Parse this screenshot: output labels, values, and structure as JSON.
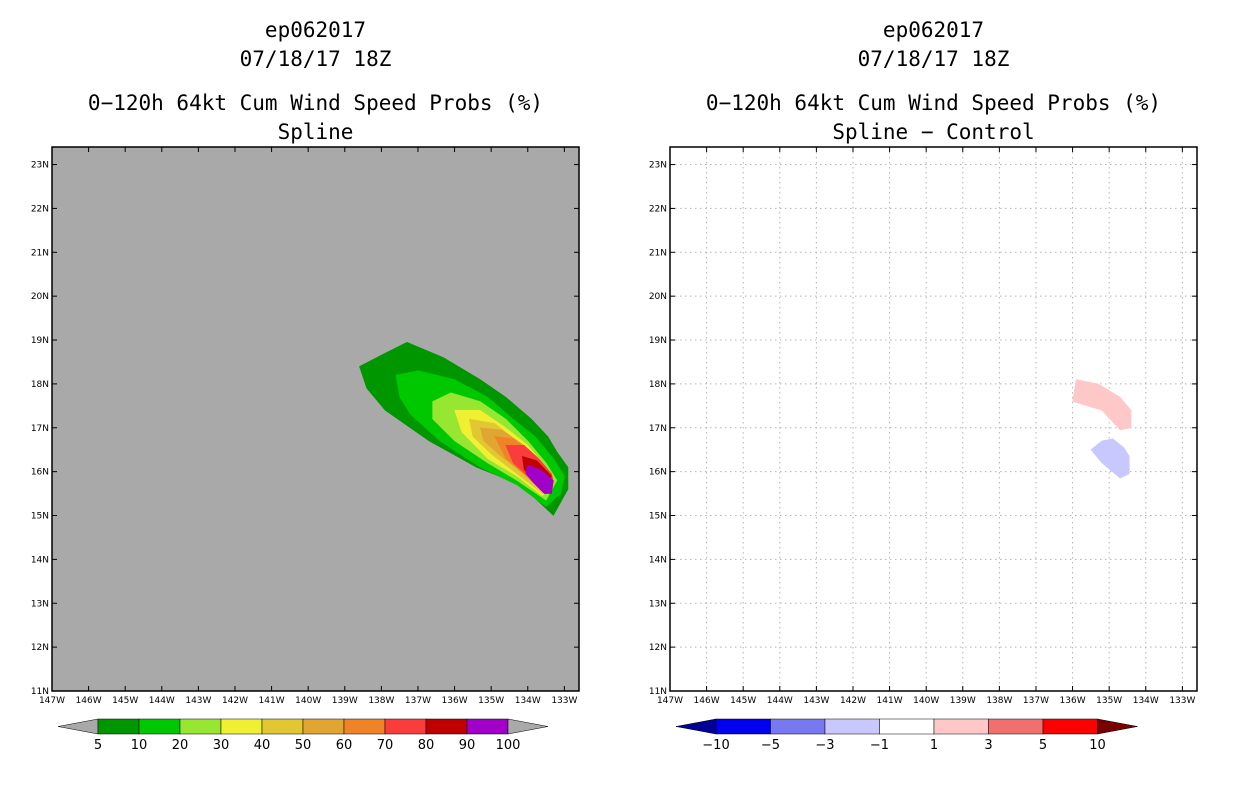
{
  "left_panel": {
    "storm_id": "ep062017",
    "datetime": "07/18/17 18Z",
    "product": "0−120h 64kt Cum Wind Speed Probs (%)",
    "subtitle": "Spline"
  },
  "right_panel": {
    "storm_id": "ep062017",
    "datetime": "07/18/17 18Z",
    "product": "0−120h 64kt Cum Wind Speed Probs (%)",
    "subtitle": "Spline − Control"
  },
  "chart_data": [
    {
      "type": "heatmap",
      "title": "0-120h 64kt Cum Wind Speed Probs (%) Spline",
      "background_color": "#a9a9a9",
      "xlim": [
        -147,
        -132.6
      ],
      "ylim": [
        11,
        23.4
      ],
      "x_ticks": [
        -147,
        -146,
        -145,
        -144,
        -143,
        -142,
        -141,
        -140,
        -139,
        -138,
        -137,
        -136,
        -135,
        -134,
        -133
      ],
      "x_tick_labels": [
        "147W",
        "146W",
        "145W",
        "144W",
        "143W",
        "142W",
        "141W",
        "140W",
        "139W",
        "138W",
        "137W",
        "136W",
        "135W",
        "134W",
        "133W"
      ],
      "y_ticks": [
        11,
        12,
        13,
        14,
        15,
        16,
        17,
        18,
        19,
        20,
        21,
        22,
        23
      ],
      "y_tick_labels": [
        "11N",
        "12N",
        "13N",
        "14N",
        "15N",
        "16N",
        "17N",
        "18N",
        "19N",
        "20N",
        "21N",
        "22N",
        "23N"
      ],
      "grid": false,
      "levels": [
        {
          "min": 5,
          "color": "#009600",
          "polygon": [
            [
              -138.6,
              18.4
            ],
            [
              -137.9,
              18.7
            ],
            [
              -137.3,
              18.95
            ],
            [
              -136.3,
              18.6
            ],
            [
              -135.3,
              18.1
            ],
            [
              -134.6,
              17.7
            ],
            [
              -133.9,
              17.2
            ],
            [
              -133.45,
              16.8
            ],
            [
              -133.2,
              16.45
            ],
            [
              -132.9,
              16.1
            ],
            [
              -132.9,
              15.6
            ],
            [
              -133.3,
              15.0
            ],
            [
              -134.2,
              15.7
            ],
            [
              -135.4,
              16.1
            ],
            [
              -136.7,
              16.7
            ],
            [
              -137.9,
              17.4
            ],
            [
              -138.4,
              17.9
            ]
          ]
        },
        {
          "min": 10,
          "color": "#00c800",
          "polygon": [
            [
              -137.6,
              18.2
            ],
            [
              -137.0,
              18.3
            ],
            [
              -136.0,
              18.1
            ],
            [
              -135.1,
              17.7
            ],
            [
              -134.4,
              17.2
            ],
            [
              -133.8,
              16.8
            ],
            [
              -133.3,
              16.3
            ],
            [
              -133.0,
              15.9
            ],
            [
              -133.1,
              15.5
            ],
            [
              -133.5,
              15.2
            ],
            [
              -134.3,
              15.7
            ],
            [
              -135.3,
              16.1
            ],
            [
              -136.4,
              16.7
            ],
            [
              -137.2,
              17.3
            ],
            [
              -137.5,
              17.7
            ]
          ]
        },
        {
          "min": 20,
          "color": "#96e632",
          "polygon": [
            [
              -136.6,
              17.6
            ],
            [
              -136.1,
              17.8
            ],
            [
              -135.3,
              17.6
            ],
            [
              -134.6,
              17.2
            ],
            [
              -134.0,
              16.7
            ],
            [
              -133.5,
              16.2
            ],
            [
              -133.2,
              15.8
            ],
            [
              -133.5,
              15.35
            ],
            [
              -134.3,
              15.8
            ],
            [
              -135.1,
              16.2
            ],
            [
              -136.0,
              16.7
            ],
            [
              -136.6,
              17.2
            ]
          ]
        },
        {
          "min": 30,
          "color": "#f0f032",
          "polygon": [
            [
              -136.0,
              17.4
            ],
            [
              -135.3,
              17.4
            ],
            [
              -134.6,
              17.0
            ],
            [
              -134.0,
              16.6
            ],
            [
              -133.5,
              16.1
            ],
            [
              -133.3,
              15.8
            ],
            [
              -133.6,
              15.45
            ],
            [
              -134.3,
              15.9
            ],
            [
              -135.1,
              16.3
            ],
            [
              -135.8,
              16.9
            ]
          ]
        },
        {
          "min": 40,
          "color": "#e1c832",
          "polygon": [
            [
              -135.6,
              17.2
            ],
            [
              -134.9,
              17.1
            ],
            [
              -134.3,
              16.7
            ],
            [
              -133.7,
              16.3
            ],
            [
              -133.3,
              15.9
            ],
            [
              -133.6,
              15.5
            ],
            [
              -134.3,
              15.95
            ],
            [
              -135.0,
              16.4
            ],
            [
              -135.5,
              16.8
            ]
          ]
        },
        {
          "min": 50,
          "color": "#e1a532",
          "polygon": [
            [
              -135.3,
              17.0
            ],
            [
              -134.7,
              16.95
            ],
            [
              -134.1,
              16.6
            ],
            [
              -133.6,
              16.2
            ],
            [
              -133.3,
              15.85
            ],
            [
              -133.6,
              15.55
            ],
            [
              -134.2,
              16.0
            ],
            [
              -134.8,
              16.4
            ],
            [
              -135.2,
              16.7
            ]
          ]
        },
        {
          "min": 60,
          "color": "#f08228",
          "polygon": [
            [
              -134.9,
              16.8
            ],
            [
              -134.4,
              16.75
            ],
            [
              -133.9,
              16.45
            ],
            [
              -133.5,
              16.1
            ],
            [
              -133.3,
              15.8
            ],
            [
              -133.6,
              15.55
            ],
            [
              -134.1,
              15.95
            ],
            [
              -134.6,
              16.3
            ]
          ]
        },
        {
          "min": 70,
          "color": "#fa3c3c",
          "polygon": [
            [
              -134.6,
              16.6
            ],
            [
              -134.1,
              16.6
            ],
            [
              -133.7,
              16.3
            ],
            [
              -133.35,
              15.95
            ],
            [
              -133.3,
              15.75
            ],
            [
              -133.6,
              15.55
            ],
            [
              -134.0,
              15.9
            ],
            [
              -134.4,
              16.2
            ]
          ]
        },
        {
          "min": 80,
          "color": "#c00000",
          "polygon": [
            [
              -134.15,
              16.35
            ],
            [
              -133.75,
              16.25
            ],
            [
              -133.35,
              15.9
            ],
            [
              -133.5,
              15.6
            ],
            [
              -133.9,
              15.85
            ],
            [
              -134.1,
              16.05
            ]
          ]
        },
        {
          "min": 90,
          "color": "#a000c8",
          "polygon": [
            [
              -134.0,
              16.15
            ],
            [
              -133.65,
              16.05
            ],
            [
              -133.3,
              15.8
            ],
            [
              -133.35,
              15.5
            ],
            [
              -133.55,
              15.5
            ],
            [
              -133.85,
              15.75
            ],
            [
              -134.05,
              15.95
            ]
          ]
        }
      ],
      "colorbar": {
        "edges": [
          "5",
          "10",
          "20",
          "30",
          "40",
          "50",
          "60",
          "70",
          "80",
          "90",
          "100"
        ],
        "colors": [
          "#009600",
          "#00c800",
          "#96e632",
          "#f0f032",
          "#e1c832",
          "#e1a532",
          "#f08228",
          "#fa3c3c",
          "#c00000",
          "#a000c8"
        ],
        "under_color": "#a9a9a9",
        "over_color": "#a9a9a9"
      }
    },
    {
      "type": "heatmap",
      "title": "0-120h 64kt Cum Wind Speed Probs (%) Spline - Control",
      "background_color": "#ffffff",
      "xlim": [
        -147,
        -132.6
      ],
      "ylim": [
        11,
        23.4
      ],
      "x_ticks": [
        -147,
        -146,
        -145,
        -144,
        -143,
        -142,
        -141,
        -140,
        -139,
        -138,
        -137,
        -136,
        -135,
        -134,
        -133
      ],
      "x_tick_labels": [
        "147W",
        "146W",
        "145W",
        "144W",
        "143W",
        "142W",
        "141W",
        "140W",
        "139W",
        "138W",
        "137W",
        "136W",
        "135W",
        "134W",
        "133W"
      ],
      "y_ticks": [
        11,
        12,
        13,
        14,
        15,
        16,
        17,
        18,
        19,
        20,
        21,
        22,
        23
      ],
      "y_tick_labels": [
        "11N",
        "12N",
        "13N",
        "14N",
        "15N",
        "16N",
        "17N",
        "18N",
        "19N",
        "20N",
        "21N",
        "22N",
        "23N"
      ],
      "grid": true,
      "levels": [
        {
          "range": [
            1,
            3
          ],
          "color": "#ffc8c8",
          "polygon": [
            [
              -135.9,
              18.1
            ],
            [
              -135.3,
              18.0
            ],
            [
              -134.7,
              17.7
            ],
            [
              -134.4,
              17.4
            ],
            [
              -134.4,
              17.0
            ],
            [
              -134.7,
              16.95
            ],
            [
              -135.2,
              17.4
            ],
            [
              -136.0,
              17.6
            ]
          ]
        },
        {
          "range": [
            -3,
            -1
          ],
          "color": "#c8c8ff",
          "polygon": [
            [
              -135.2,
              16.7
            ],
            [
              -134.9,
              16.75
            ],
            [
              -134.6,
              16.55
            ],
            [
              -134.45,
              16.35
            ],
            [
              -134.45,
              15.95
            ],
            [
              -134.7,
              15.85
            ],
            [
              -135.2,
              16.2
            ],
            [
              -135.5,
              16.5
            ]
          ]
        }
      ],
      "colorbar": {
        "edges": [
          "−10",
          "−5",
          "−3",
          "−1",
          "1",
          "3",
          "5",
          "10"
        ],
        "colors": [
          "#0000f0",
          "#7878f0",
          "#c8c8ff",
          "#ffffff",
          "#ffc8c8",
          "#f07070",
          "#ff0000"
        ],
        "under_color": "#000096",
        "over_color": "#780000"
      }
    }
  ]
}
